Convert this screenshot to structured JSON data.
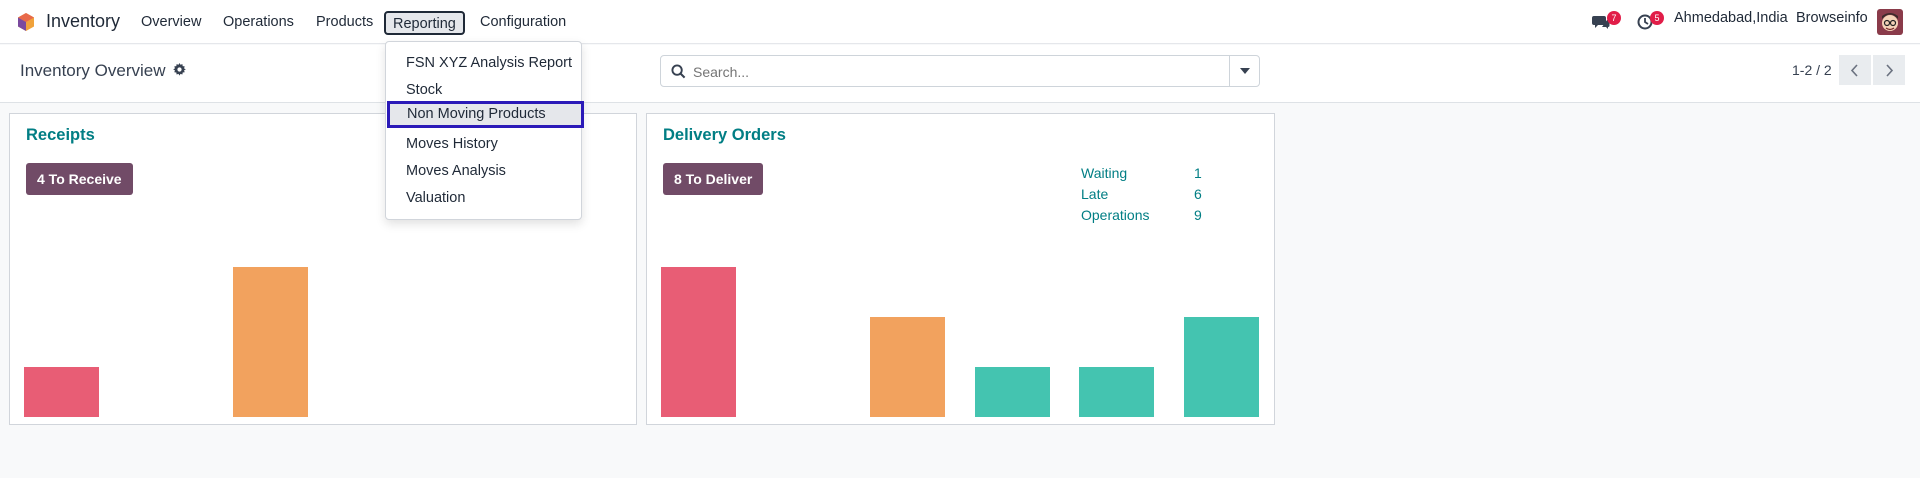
{
  "navbar": {
    "app_name": "Inventory",
    "menu": [
      "Overview",
      "Operations",
      "Products",
      "Reporting",
      "Configuration"
    ],
    "messages_count": "7",
    "activities_count": "5",
    "company": "Ahmedabad,India",
    "user": "Browseinfo"
  },
  "control": {
    "title": "Inventory Overview",
    "search_placeholder": "Search...",
    "pager": "1-2 / 2"
  },
  "reporting_menu": {
    "items": [
      "FSN XYZ Analysis Report",
      "Stock",
      "Non Moving Products",
      "Moves History",
      "Moves Analysis",
      "Valuation"
    ],
    "highlighted": "Non Moving Products"
  },
  "receipts": {
    "title": "Receipts",
    "button": "4 To Receive",
    "bars": [
      1,
      0,
      3
    ],
    "bar_colors": [
      "#e85d75",
      "#ffffff",
      "#f2a25e"
    ]
  },
  "delivery": {
    "title": "Delivery Orders",
    "button": "8 To Deliver",
    "stats": [
      {
        "label": "Waiting",
        "value": "1"
      },
      {
        "label": "Late",
        "value": "6"
      },
      {
        "label": "Operations",
        "value": "9"
      }
    ],
    "bars": [
      3,
      0,
      2,
      1,
      1,
      2
    ],
    "bar_colors": [
      "#e85d75",
      "#ffffff",
      "#f2a25e",
      "#44c4b0",
      "#44c4b0",
      "#44c4b0"
    ]
  },
  "colors": {
    "accent": "#017e84",
    "button": "#714b67",
    "highlight_border": "#2b1ab8"
  }
}
